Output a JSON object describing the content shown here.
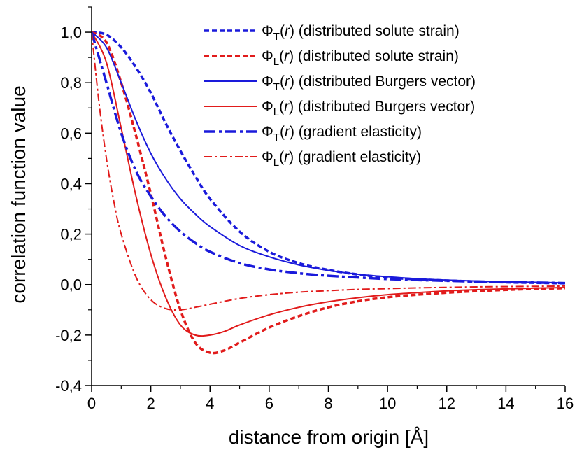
{
  "chart_data": {
    "type": "line",
    "xlabel": "distance from origin [Å]",
    "ylabel": "correlation function value",
    "xlim": [
      0,
      16
    ],
    "ylim": [
      -0.4,
      1.1
    ],
    "x_ticks": [
      0,
      2,
      4,
      6,
      8,
      10,
      12,
      14,
      16
    ],
    "y_ticks": [
      -0.4,
      -0.2,
      0.0,
      0.2,
      0.4,
      0.6,
      0.8,
      1.0
    ],
    "x_tick_labels": [
      "0",
      "2",
      "4",
      "6",
      "8",
      "10",
      "12",
      "14",
      "16"
    ],
    "y_tick_labels": [
      "-0,4",
      "-0,2",
      "0,0",
      "0,2",
      "0,4",
      "0,6",
      "0,8",
      "1,0"
    ],
    "grid": false,
    "legend_position": "top-right",
    "series": [
      {
        "name": "ΦT(r) (distributed solute strain)",
        "legend": {
          "sym": "Φ",
          "sub": "T",
          "arg": "r",
          "desc": " (distributed solute strain)"
        },
        "color": "#1a1adb",
        "dash": "dotted",
        "weight": "bold",
        "x": [
          0,
          0.5,
          1,
          1.5,
          2,
          2.5,
          3,
          3.5,
          4,
          5,
          6,
          7,
          8,
          9,
          10,
          11,
          12,
          13,
          14,
          15,
          16
        ],
        "y": [
          1.0,
          0.99,
          0.94,
          0.86,
          0.76,
          0.64,
          0.53,
          0.43,
          0.34,
          0.21,
          0.13,
          0.085,
          0.058,
          0.04,
          0.028,
          0.021,
          0.016,
          0.012,
          0.009,
          0.007,
          0.005
        ]
      },
      {
        "name": "ΦL(r) (distributed solute strain)",
        "legend": {
          "sym": "Φ",
          "sub": "L",
          "arg": "r",
          "desc": " (distributed solute strain)"
        },
        "color": "#e11b1b",
        "dash": "dotted",
        "weight": "bold",
        "x": [
          0,
          0.5,
          1,
          1.5,
          2,
          2.5,
          3,
          3.5,
          4,
          4.5,
          5,
          6,
          7,
          8,
          9,
          10,
          11,
          12,
          13,
          14,
          15,
          16
        ],
        "y": [
          1.0,
          0.96,
          0.8,
          0.59,
          0.36,
          0.11,
          -0.1,
          -0.23,
          -0.27,
          -0.26,
          -0.23,
          -0.17,
          -0.125,
          -0.09,
          -0.066,
          -0.05,
          -0.04,
          -0.032,
          -0.026,
          -0.021,
          -0.017,
          -0.014
        ]
      },
      {
        "name": "ΦT(r) (distributed Burgers vector)",
        "legend": {
          "sym": "Φ",
          "sub": "T",
          "arg": "r",
          "desc": " (distributed Burgers vector)"
        },
        "color": "#1a1adb",
        "dash": "solid",
        "weight": "normal",
        "x": [
          0,
          0.5,
          1,
          1.5,
          2,
          2.5,
          3,
          3.5,
          4,
          5,
          6,
          7,
          8,
          9,
          10,
          11,
          12,
          13,
          14,
          15,
          16
        ],
        "y": [
          1.0,
          0.94,
          0.8,
          0.65,
          0.52,
          0.42,
          0.34,
          0.28,
          0.23,
          0.155,
          0.11,
          0.078,
          0.056,
          0.041,
          0.031,
          0.023,
          0.018,
          0.014,
          0.011,
          0.009,
          0.007
        ]
      },
      {
        "name": "ΦL(r) (distributed Burgers vector)",
        "legend": {
          "sym": "Φ",
          "sub": "L",
          "arg": "r",
          "desc": " (distributed Burgers vector)"
        },
        "color": "#e11b1b",
        "dash": "solid",
        "weight": "normal",
        "x": [
          0,
          0.5,
          1,
          1.5,
          2,
          2.5,
          3,
          3.5,
          4,
          4.5,
          5,
          6,
          7,
          8,
          9,
          10,
          11,
          12,
          13,
          14,
          15,
          16
        ],
        "y": [
          1.0,
          0.88,
          0.62,
          0.35,
          0.12,
          -0.05,
          -0.16,
          -0.2,
          -0.2,
          -0.185,
          -0.16,
          -0.12,
          -0.09,
          -0.068,
          -0.052,
          -0.04,
          -0.032,
          -0.025,
          -0.02,
          -0.017,
          -0.014,
          -0.012
        ]
      },
      {
        "name": "ΦT(r) (gradient elasticity)",
        "legend": {
          "sym": "Φ",
          "sub": "T",
          "arg": "r",
          "desc": " (gradient elasticity)"
        },
        "color": "#1a1adb",
        "dash": "dashdot",
        "weight": "bold",
        "x": [
          0,
          0.25,
          0.5,
          1,
          1.5,
          2,
          2.5,
          3,
          3.5,
          4,
          5,
          6,
          7,
          8,
          9,
          10,
          11,
          12,
          13,
          14,
          15,
          16
        ],
        "y": [
          1.0,
          0.9,
          0.8,
          0.6,
          0.45,
          0.35,
          0.27,
          0.21,
          0.165,
          0.13,
          0.085,
          0.06,
          0.045,
          0.035,
          0.028,
          0.022,
          0.018,
          0.015,
          0.012,
          0.01,
          0.008,
          0.006
        ]
      },
      {
        "name": "ΦL(r) (gradient elasticity)",
        "legend": {
          "sym": "Φ",
          "sub": "L",
          "arg": "r",
          "desc": " (gradient elasticity)"
        },
        "color": "#e11b1b",
        "dash": "dashdot",
        "weight": "normal",
        "x": [
          0,
          0.25,
          0.5,
          0.75,
          1,
          1.5,
          2,
          2.5,
          3,
          3.5,
          4,
          5,
          6,
          7,
          8,
          9,
          10,
          11,
          12,
          13,
          14,
          15,
          16
        ],
        "y": [
          1.0,
          0.72,
          0.5,
          0.33,
          0.2,
          0.03,
          -0.06,
          -0.095,
          -0.1,
          -0.09,
          -0.078,
          -0.055,
          -0.04,
          -0.03,
          -0.024,
          -0.019,
          -0.016,
          -0.013,
          -0.011,
          -0.009,
          -0.008,
          -0.007,
          -0.006
        ]
      }
    ]
  }
}
